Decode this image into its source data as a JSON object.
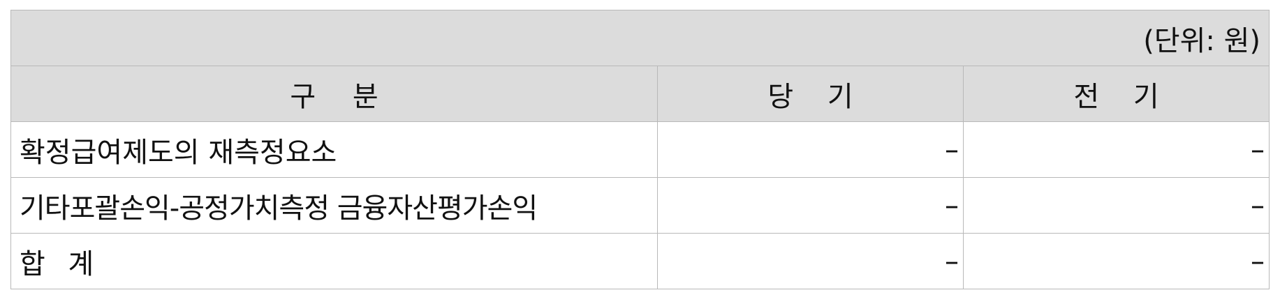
{
  "unit_note": "(단위: 원)",
  "headers": {
    "category": "구 분",
    "current": "당 기",
    "prior": "전 기"
  },
  "rows": [
    {
      "label": "확정급여제도의 재측정요소",
      "current": "–",
      "prior": "–"
    },
    {
      "label": "기타포괄손익-공정가치측정 금융자산평가손익",
      "current": "–",
      "prior": "–"
    },
    {
      "label": "합 계",
      "current": "–",
      "prior": "–"
    }
  ]
}
